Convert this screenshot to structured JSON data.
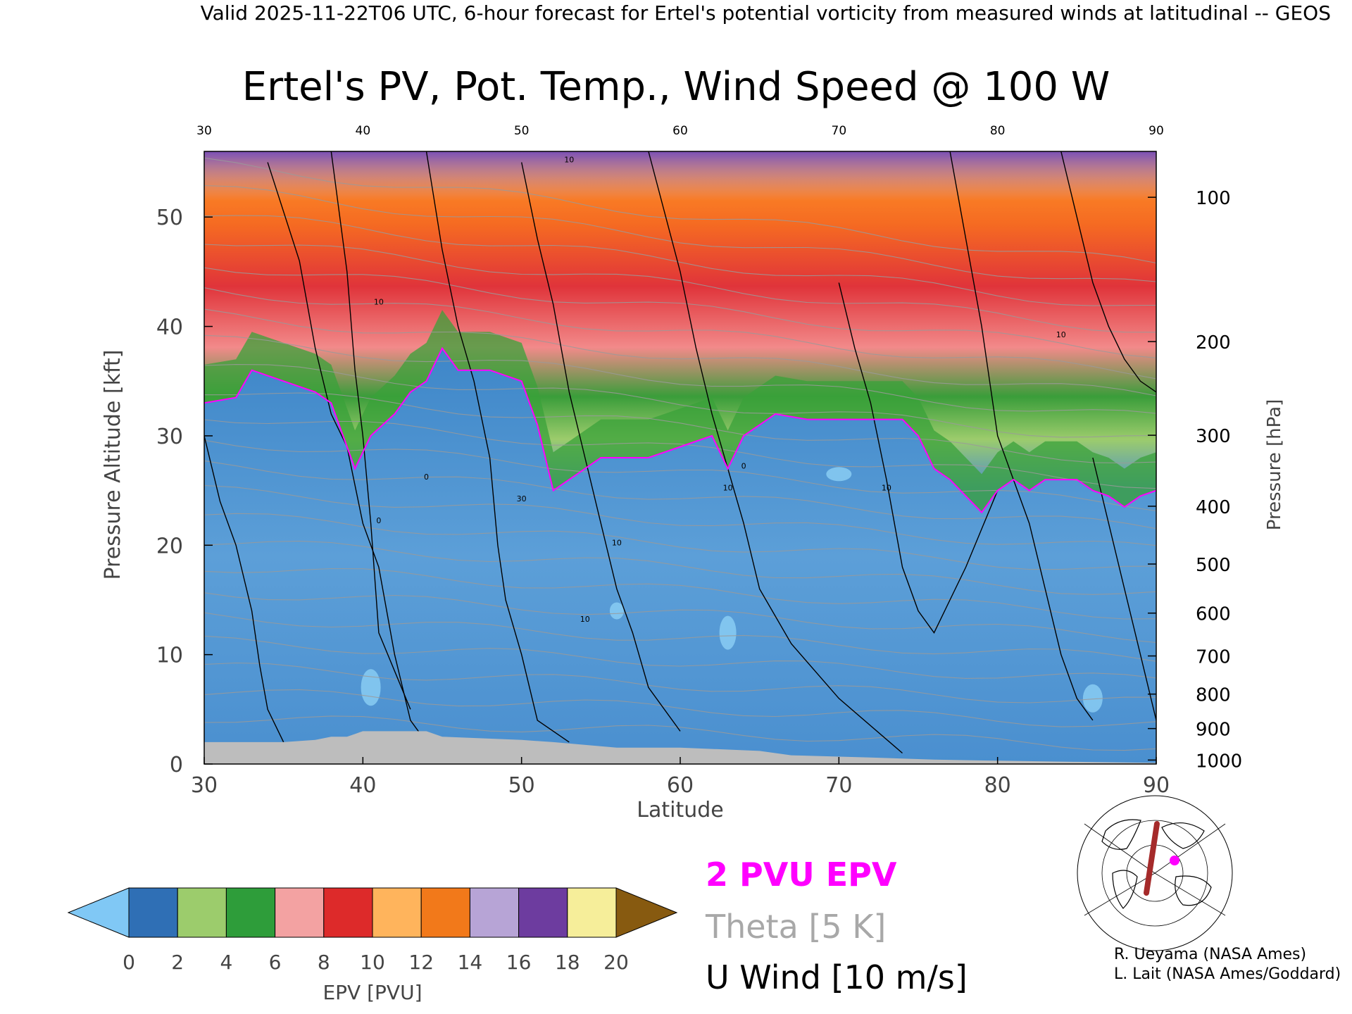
{
  "header": {
    "valid_line": "Valid 2025-11-22T06 UTC, 6-hour forecast for Ertel's potential vorticity from measured winds at latitudinal -- GEOS"
  },
  "chart_data": {
    "type": "heatmap",
    "title": "Ertel's PV, Pot. Temp., Wind Speed @ 100 W",
    "xlabel": "Latitude",
    "ylabel": "Pressure Altitude [kft]",
    "y2label": "Pressure [hPa]",
    "xlim": [
      30,
      90
    ],
    "ylim": [
      0,
      56
    ],
    "x_ticks": [
      30,
      40,
      50,
      60,
      70,
      80,
      90
    ],
    "x_tick_labels": [
      "30",
      "40",
      "50",
      "60",
      "70",
      "80",
      "90"
    ],
    "y_ticks": [
      0,
      10,
      20,
      30,
      40,
      50
    ],
    "y_tick_labels": [
      "0",
      "10",
      "20",
      "30",
      "40",
      "50"
    ],
    "pressure_ticks": [
      {
        "hpa": 100,
        "label": "100"
      },
      {
        "hpa": 200,
        "label": "200"
      },
      {
        "hpa": 300,
        "label": "300"
      },
      {
        "hpa": 400,
        "label": "400"
      },
      {
        "hpa": 500,
        "label": "500"
      },
      {
        "hpa": 600,
        "label": "600"
      },
      {
        "hpa": 700,
        "label": "700"
      },
      {
        "hpa": 800,
        "label": "800"
      },
      {
        "hpa": 900,
        "label": "900"
      },
      {
        "hpa": 1000,
        "label": "1000"
      }
    ],
    "tropopause_2pvu_kft": [
      [
        30,
        33
      ],
      [
        32,
        33.5
      ],
      [
        33,
        36
      ],
      [
        35,
        35
      ],
      [
        37,
        34
      ],
      [
        38,
        33
      ],
      [
        39,
        29
      ],
      [
        39.5,
        27
      ],
      [
        40.5,
        30
      ],
      [
        42,
        32
      ],
      [
        43,
        34
      ],
      [
        44,
        35
      ],
      [
        45,
        38
      ],
      [
        46,
        36
      ],
      [
        48,
        36
      ],
      [
        50,
        35
      ],
      [
        51,
        31
      ],
      [
        52,
        25
      ],
      [
        53,
        26
      ],
      [
        55,
        28
      ],
      [
        56,
        28
      ],
      [
        58,
        28
      ],
      [
        60,
        29
      ],
      [
        62,
        30
      ],
      [
        63,
        27
      ],
      [
        64,
        30
      ],
      [
        65,
        31
      ],
      [
        66,
        32
      ],
      [
        68,
        31.5
      ],
      [
        70,
        31.5
      ],
      [
        72,
        31.5
      ],
      [
        74,
        31.5
      ],
      [
        75,
        30
      ],
      [
        76,
        27
      ],
      [
        77,
        26
      ],
      [
        78,
        24.5
      ],
      [
        79,
        23
      ],
      [
        80,
        25
      ],
      [
        81,
        26
      ],
      [
        82,
        25
      ],
      [
        83,
        26
      ],
      [
        84,
        26
      ],
      [
        85,
        26
      ],
      [
        86,
        25
      ],
      [
        87,
        24.5
      ],
      [
        88,
        23.5
      ],
      [
        89,
        24.5
      ],
      [
        90,
        25
      ]
    ],
    "theta_levels_K": [
      260,
      300,
      310,
      320,
      340,
      350,
      360,
      370,
      380,
      390,
      400,
      420
    ],
    "u_wind_zero_line_lat": [
      39.5,
      50,
      64,
      77
    ],
    "u_wind_contour_labels": [
      {
        "label": "10",
        "lat": 41,
        "kft": 42
      },
      {
        "label": "0",
        "lat": 44,
        "kft": 26
      },
      {
        "label": "0",
        "lat": 41,
        "kft": 22
      },
      {
        "label": "30",
        "lat": 50,
        "kft": 24
      },
      {
        "label": "10",
        "lat": 56,
        "kft": 20
      },
      {
        "label": "10",
        "lat": 54,
        "kft": 13
      },
      {
        "label": "10",
        "lat": 63,
        "kft": 25
      },
      {
        "label": "0",
        "lat": 64,
        "kft": 27
      },
      {
        "label": "10",
        "lat": 73,
        "kft": 25
      },
      {
        "label": "10",
        "lat": 84,
        "kft": 39
      },
      {
        "label": "10",
        "lat": 53,
        "kft": 55
      }
    ],
    "surface_kft": [
      [
        30,
        2
      ],
      [
        33,
        2
      ],
      [
        35,
        2
      ],
      [
        37,
        2.2
      ],
      [
        38,
        2.5
      ],
      [
        39,
        2.5
      ],
      [
        40,
        3
      ],
      [
        44,
        3
      ],
      [
        45,
        2.5
      ],
      [
        50,
        2.2
      ],
      [
        52,
        2
      ],
      [
        56,
        1.5
      ],
      [
        60,
        1.5
      ],
      [
        65,
        1.2
      ],
      [
        67,
        0.8
      ],
      [
        72,
        0.6
      ],
      [
        76,
        0.4
      ],
      [
        80,
        0.3
      ],
      [
        85,
        0.2
      ],
      [
        90,
        0.1
      ]
    ],
    "colorbar": {
      "label": "EPV [PVU]",
      "ticks": [
        "0",
        "2",
        "4",
        "6",
        "8",
        "10",
        "12",
        "14",
        "16",
        "18",
        "20"
      ],
      "colors": [
        "#2f6fb5",
        "#9ccc6c",
        "#2e9d3a",
        "#f3a2a2",
        "#dd2a2a",
        "#ffb45c",
        "#f2791a",
        "#b7a4d6",
        "#6d3c9f",
        "#f6ee9a"
      ],
      "under_color": "#80c8f5",
      "over_color": "#875a10"
    },
    "legend": [
      {
        "text": "2 PVU EPV",
        "color": "#ff00ff"
      },
      {
        "text": "Theta [5 K]",
        "color": "#a8a8a8"
      },
      {
        "text": "U Wind [10 m/s]",
        "color": "#000000"
      }
    ],
    "colors": {
      "surface": "#bdbdbd",
      "stratosphere_red": "#e0343a",
      "troposphere_blue": "#4b8fcc"
    }
  },
  "credits": {
    "line1": "R. Ueyama (NASA Ames)",
    "line2": "L. Lait (NASA Ames/Goddard)"
  },
  "inset_map": {
    "icon": "polar-map-icon"
  }
}
